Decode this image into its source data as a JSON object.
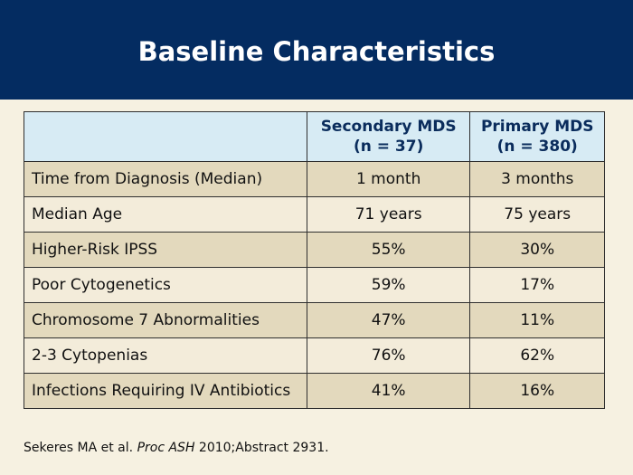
{
  "slide": {
    "title": "Baseline Characteristics"
  },
  "table": {
    "columns": [
      {
        "line1": "Secondary MDS",
        "line2": "(n = 37)"
      },
      {
        "line1": "Primary MDS",
        "line2": "(n = 380)"
      }
    ],
    "rows": [
      {
        "label": "Time from Diagnosis (Median)",
        "secondary": "1 month",
        "primary": "3 months"
      },
      {
        "label": "Median Age",
        "secondary": "71 years",
        "primary": "75 years"
      },
      {
        "label": "Higher-Risk IPSS",
        "secondary": "55%",
        "primary": "30%"
      },
      {
        "label": "Poor Cytogenetics",
        "secondary": "59%",
        "primary": "17%"
      },
      {
        "label": "Chromosome 7 Abnormalities",
        "secondary": "47%",
        "primary": "11%"
      },
      {
        "label": "2-3 Cytopenias",
        "secondary": "76%",
        "primary": "62%"
      },
      {
        "label": "Infections Requiring IV Antibiotics",
        "secondary": "41%",
        "primary": "16%"
      }
    ]
  },
  "citation": {
    "authors": "Sekeres MA et al. ",
    "journal": "Proc ASH",
    "rest": " 2010;Abstract 2931."
  },
  "colors": {
    "header_bg": "#042c61",
    "page_bg": "#f6f1e1",
    "table_header_bg": "#d7ebf4",
    "row_dark": "#e3d9bd",
    "row_light": "#f3ecda"
  }
}
